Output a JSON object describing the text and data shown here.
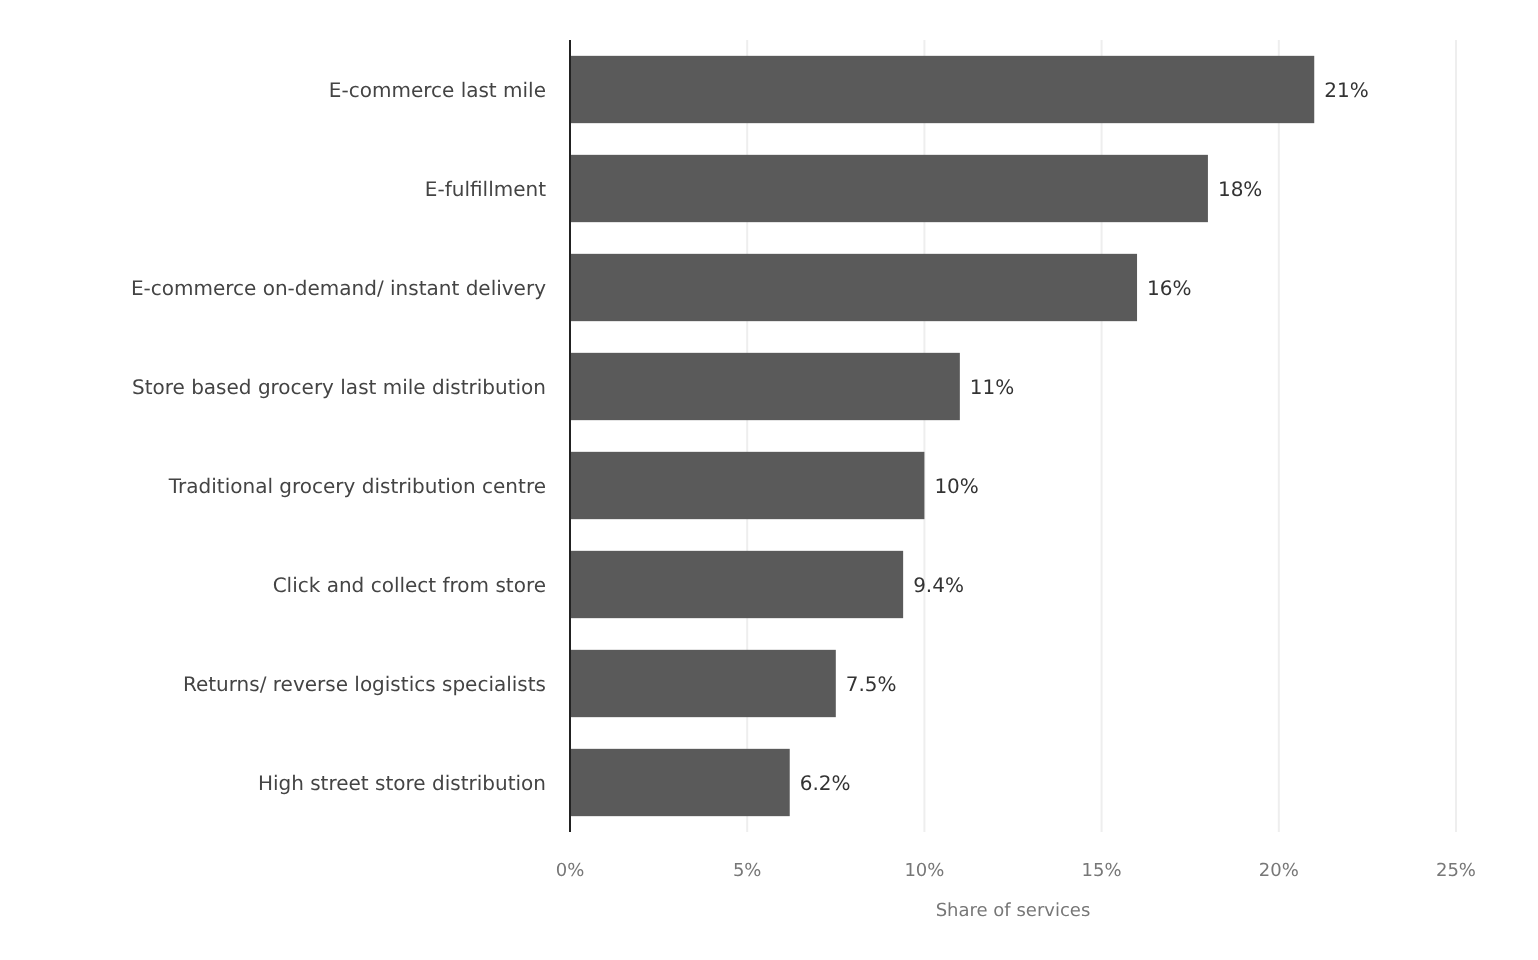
{
  "chart_data": {
    "type": "bar",
    "orientation": "horizontal",
    "xlabel": "Share of services",
    "categories": [
      "E-commerce last mile",
      "E-fulfillment",
      "E-commerce on-demand/ instant delivery",
      "Store based grocery last mile distribution",
      "Traditional grocery distribution centre",
      "Click and collect from store",
      "Returns/ reverse logistics specialists",
      "High street store distribution"
    ],
    "values": [
      21,
      18,
      16,
      11,
      10,
      9.4,
      7.5,
      6.2
    ],
    "value_labels": [
      "21%",
      "18%",
      "16%",
      "11%",
      "10%",
      "9.4%",
      "7.5%",
      "6.2%"
    ],
    "color": "#5a5a5a",
    "xlim": [
      0,
      25
    ],
    "xticks": [
      {
        "value": 0,
        "label": "0%"
      },
      {
        "value": 5,
        "label": "5%"
      },
      {
        "value": 10,
        "label": "10%"
      },
      {
        "value": 15,
        "label": "15%"
      },
      {
        "value": 20,
        "label": "20%"
      },
      {
        "value": 25,
        "label": "25%"
      }
    ],
    "grid": "x"
  }
}
